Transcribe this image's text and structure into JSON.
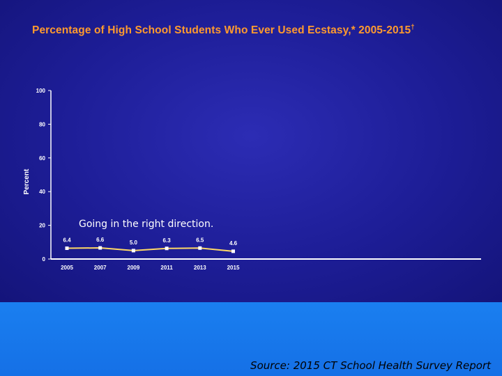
{
  "slide": {
    "title": "Percentage of High School Students Who Ever Used Ecstasy,* 2005-2015",
    "title_mark": "†",
    "source": "Source: 2015 CT School Health Survey Report",
    "colors": {
      "background": "#1a1a8c",
      "title": "#ff9a2e",
      "line": "#ffd966",
      "footer": "#1a7ff0"
    }
  },
  "chart_data": {
    "type": "line",
    "ylabel": "Percent",
    "xlabel": "",
    "ylim": [
      0,
      100
    ],
    "yticks": [
      0,
      20,
      40,
      60,
      80,
      100
    ],
    "categories": [
      "2005",
      "2007",
      "2009",
      "2011",
      "2013",
      "2015"
    ],
    "series": [
      {
        "values": [
          6.4,
          6.6,
          5.0,
          6.3,
          6.5,
          4.6
        ],
        "labels": [
          "6.4",
          "6.6",
          "5.0",
          "6.3",
          "6.5",
          "4.6"
        ]
      }
    ],
    "annotation": "Going in the right direction.",
    "grid": false,
    "legend": "none"
  }
}
